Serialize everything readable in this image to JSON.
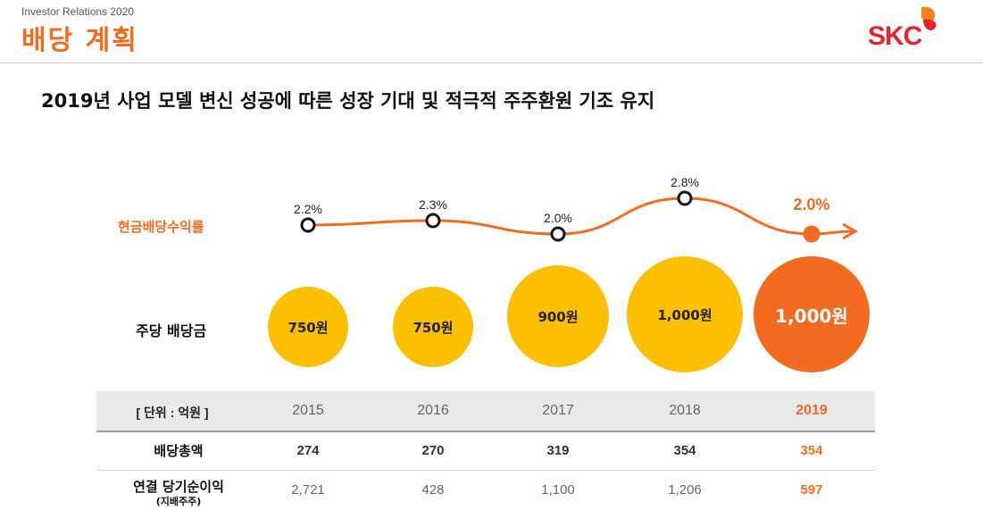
{
  "header": {
    "subtitle": "Investor Relations 2020",
    "title": "배당 계획",
    "logo": {
      "text": "SKC",
      "icon": "skc-butterfly-logo",
      "brand_color": "#e5232c",
      "accent_color": "#f58220"
    }
  },
  "headline": "2019년 사업 모델 변신 성공에 따른 성장 기대 및 적극적 주주환원 기조 유지",
  "labels": {
    "yield": "현금배당수익률",
    "dps": "주당 배당금"
  },
  "chart_data": {
    "type": "line",
    "x": [
      "2015",
      "2016",
      "2017",
      "2018",
      "2019"
    ],
    "series": [
      {
        "name": "현금배당수익률",
        "values": [
          2.2,
          2.3,
          2.0,
          2.8,
          2.0
        ],
        "labels": [
          "2.2%",
          "2.3%",
          "2.0%",
          "2.8%",
          "2.0%"
        ]
      }
    ],
    "dividend_per_share": {
      "values": [
        750,
        750,
        900,
        1000,
        1000
      ],
      "labels": [
        "750원",
        "750원",
        "900원",
        "1,000원",
        "1,000원"
      ]
    },
    "colors": {
      "line": "#f26b21",
      "highlight": "#f26b21",
      "bubble": "#fcc000"
    }
  },
  "table": {
    "unit_label": "[ 단위 : 억원 ]",
    "years": [
      "2015",
      "2016",
      "2017",
      "2018",
      "2019"
    ],
    "rows": [
      {
        "label": "배당총액",
        "sublabel": "",
        "values": [
          "274",
          "270",
          "319",
          "354",
          "354"
        ]
      },
      {
        "label": "연결 당기순이익",
        "sublabel": "(지배주주)",
        "values": [
          "2,721",
          "428",
          "1,100",
          "1,206",
          "597"
        ]
      }
    ],
    "highlight_color": "#f26b21"
  }
}
